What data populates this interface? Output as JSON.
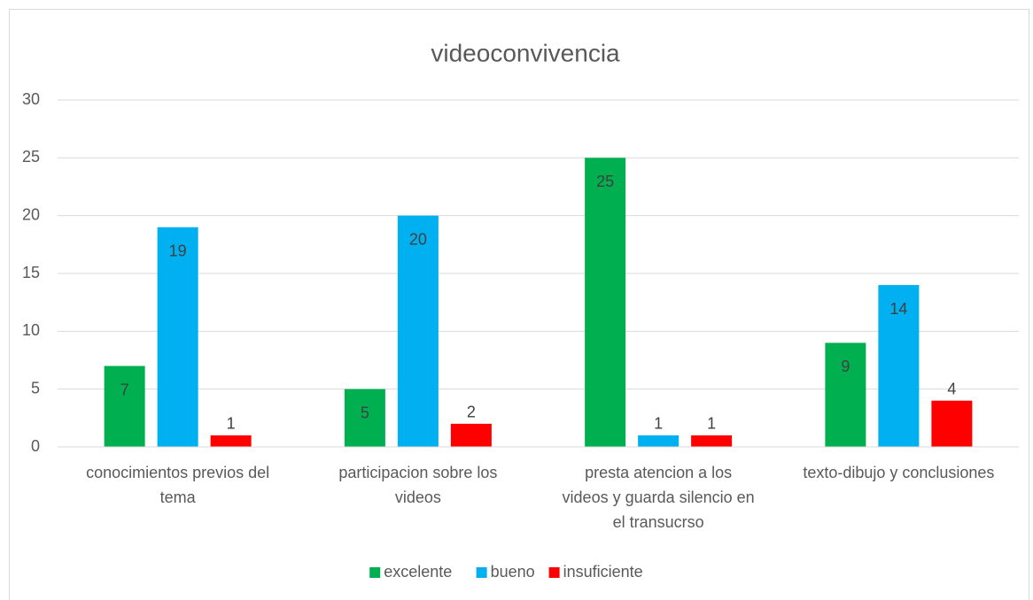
{
  "chart_data": {
    "type": "bar",
    "title": "videoconvivencia",
    "categories": [
      "conocimientos previos del tema",
      "participacion sobre los videos",
      "presta atencion a los videos y guarda silencio en el transucrso",
      "texto-dibujo y conclusiones"
    ],
    "series": [
      {
        "name": "excelente",
        "color": "#00b050",
        "values": [
          7,
          5,
          25,
          9
        ]
      },
      {
        "name": "bueno",
        "color": "#00b0f0",
        "values": [
          19,
          20,
          1,
          14
        ]
      },
      {
        "name": "insuficiente",
        "color": "#ff0000",
        "values": [
          1,
          2,
          1,
          4
        ]
      }
    ],
    "ylim": [
      0,
      30
    ],
    "yticks": [
      0,
      5,
      10,
      15,
      20,
      25,
      30
    ],
    "grid": true,
    "legend": "bottom"
  }
}
